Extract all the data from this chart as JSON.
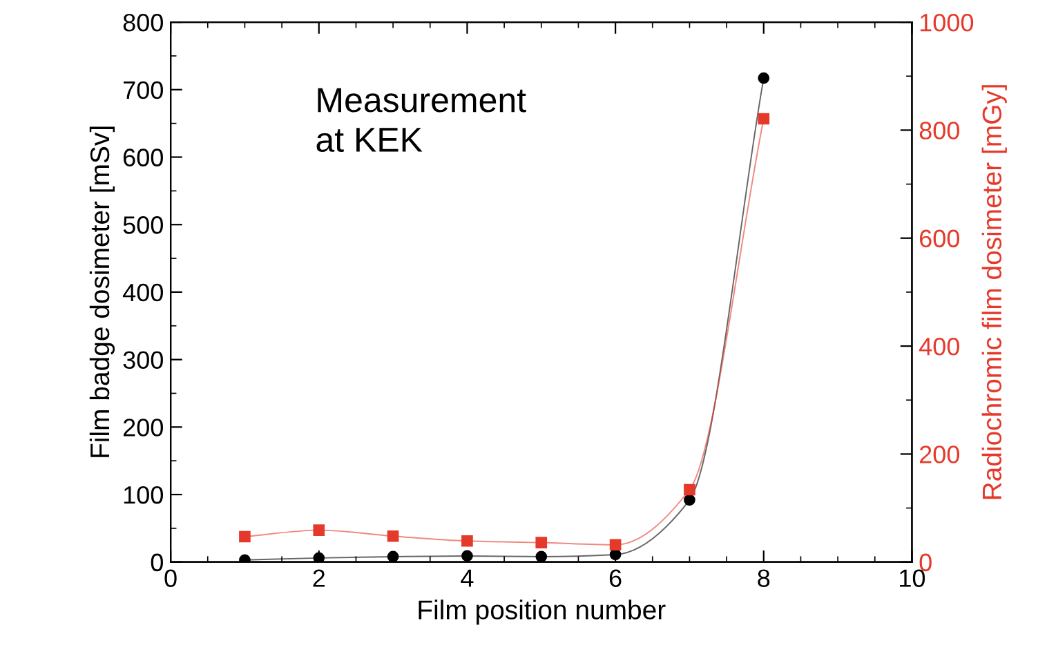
{
  "chart_data": {
    "type": "line",
    "xlabel": "Film position number",
    "ylabel": "Film badge dosimeter [mSv]",
    "y2label": "Radiochromic film dosimeter [mGy]",
    "annotations": [
      "Measurement\nat KEK"
    ],
    "x": [
      1,
      2,
      3,
      4,
      5,
      6,
      7,
      8
    ],
    "series": [
      {
        "color": "#000000",
        "marker": "circle",
        "values": [
          3,
          6,
          8,
          9,
          8,
          11,
          92,
          717
        ]
      },
      {
        "color": "#e53a2b",
        "marker": "square",
        "axis": "y2",
        "values": [
          47,
          59,
          48,
          39,
          36,
          32,
          134,
          821
        ]
      }
    ],
    "xlim": [
      0,
      10
    ],
    "xticks": [
      0,
      2,
      4,
      6,
      8,
      10
    ],
    "ylim": [
      0,
      800
    ],
    "yticks": [
      0,
      100,
      200,
      300,
      400,
      500,
      600,
      700,
      800
    ],
    "y2lim": [
      0,
      1000
    ],
    "y2ticks": [
      0,
      200,
      400,
      600,
      800,
      1000
    ],
    "line_style": "solid",
    "grid": false,
    "legend": false
  }
}
